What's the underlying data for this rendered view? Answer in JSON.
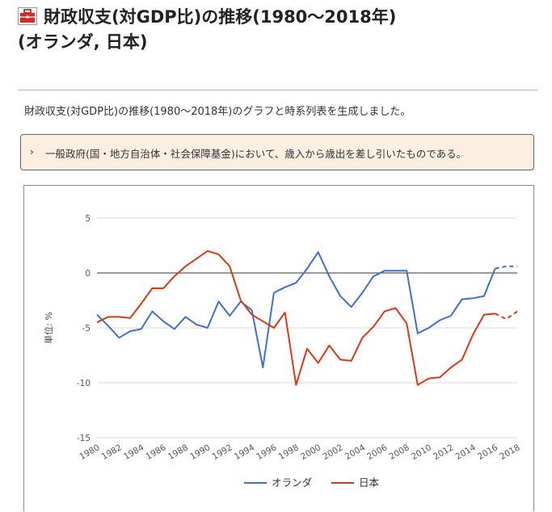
{
  "page": {
    "title_line1": "財政収支(対GDP比)の推移(1980～2018年)",
    "title_line2": "(オランダ, 日本)",
    "icon": "red-toolbox-icon",
    "intro": "財政収支(対GDP比)の推移(1980～2018年)のグラフと時系列表を生成しました。",
    "note_bullet": "›",
    "note": "一般政府(国・地方自治体・社会保障基金)において、歳入から歳出を差し引いたものである。"
  },
  "colors": {
    "netherlands": "#3f6fd1",
    "japan": "#dc3912",
    "note_bg": "#fdeee2",
    "grid": "#d9d9d9",
    "zero_line": "#333333"
  },
  "chart_data": {
    "type": "line",
    "ylabel": "単位: %",
    "ylim": [
      -15,
      5
    ],
    "yticks": [
      5,
      0,
      -5,
      -10,
      -15
    ],
    "xticks": [
      1980,
      1982,
      1984,
      1986,
      1988,
      1990,
      1992,
      1994,
      1996,
      1998,
      2000,
      2002,
      2004,
      2006,
      2008,
      2010,
      2012,
      2014,
      2016,
      2018
    ],
    "x": [
      1980,
      1981,
      1982,
      1983,
      1984,
      1985,
      1986,
      1987,
      1988,
      1989,
      1990,
      1991,
      1992,
      1993,
      1994,
      1995,
      1996,
      1997,
      1998,
      1999,
      2000,
      2001,
      2002,
      2003,
      2004,
      2005,
      2006,
      2007,
      2008,
      2009,
      2010,
      2011,
      2012,
      2013,
      2014,
      2015,
      2016,
      2017,
      2018
    ],
    "dashed_from_x": 2016,
    "grid": true,
    "legend_position": "bottom",
    "series": [
      {
        "name": "オランダ",
        "color_key": "netherlands",
        "values": [
          -3.8,
          -4.8,
          -5.9,
          -5.3,
          -5.1,
          -3.5,
          -4.4,
          -5.1,
          -4.0,
          -4.7,
          -5.0,
          -2.6,
          -3.9,
          -2.6,
          -3.4,
          -8.6,
          -1.8,
          -1.3,
          -0.9,
          0.4,
          1.9,
          -0.3,
          -2.1,
          -3.1,
          -1.8,
          -0.3,
          0.2,
          0.2,
          0.2,
          -5.5,
          -5.0,
          -4.3,
          -3.9,
          -2.4,
          -2.3,
          -2.1,
          0.4,
          0.6,
          0.6
        ]
      },
      {
        "name": "日本",
        "color_key": "japan",
        "values": [
          -4.5,
          -4.0,
          -4.0,
          -4.1,
          -2.8,
          -1.4,
          -1.4,
          -0.3,
          0.6,
          1.3,
          2.0,
          1.7,
          0.6,
          -2.5,
          -3.8,
          -4.4,
          -5.0,
          -3.6,
          -10.2,
          -6.9,
          -8.2,
          -6.6,
          -7.9,
          -8.0,
          -5.9,
          -4.9,
          -3.5,
          -3.2,
          -4.6,
          -10.2,
          -9.6,
          -9.5,
          -8.6,
          -7.9,
          -5.6,
          -3.8,
          -3.7,
          -4.2,
          -3.5
        ]
      }
    ]
  }
}
